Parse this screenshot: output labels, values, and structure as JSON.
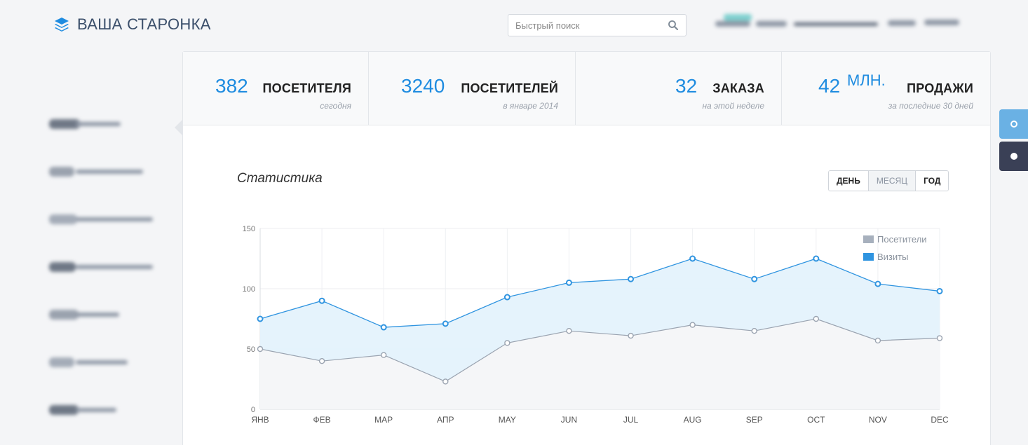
{
  "app": {
    "title": "ВАША СТАРОНКА",
    "search_placeholder": "Быстрый поиск"
  },
  "stats": [
    {
      "value": "382",
      "unit": "",
      "label": "ПОСЕТИТЕЛЯ",
      "sub": "сегодня"
    },
    {
      "value": "3240",
      "unit": "",
      "label": "ПОСЕТИТЕЛЕЙ",
      "sub": "в январе 2014"
    },
    {
      "value": "32",
      "unit": "",
      "label": "ЗАКАЗА",
      "sub": "на этой неделе"
    },
    {
      "value": "42",
      "unit": "МЛН.",
      "label": "ПРОДАЖИ",
      "sub": "за последние 30 дней"
    }
  ],
  "chart_panel": {
    "title": "Статистика",
    "periods": [
      "ДЕНЬ",
      "МЕСЯЦ",
      "ГОД"
    ],
    "active_period": "МЕСЯЦ"
  },
  "colors": {
    "accent": "#1f8ce0",
    "visits_fill": "#e4f2fc",
    "visitors_line": "#9aa3b0",
    "side_tab_blue": "#6ab1e4",
    "side_tab_dark": "#3a4056"
  },
  "chart_data": {
    "type": "area",
    "categories": [
      "ЯНВ",
      "ФЕВ",
      "МАР",
      "АПР",
      "MAY",
      "JUN",
      "JUL",
      "AUG",
      "SEP",
      "OCT",
      "NOV",
      "DEC"
    ],
    "series": [
      {
        "name": "Посетители",
        "color": "#9aa3b0",
        "values": [
          50,
          40,
          45,
          23,
          55,
          65,
          61,
          70,
          65,
          75,
          57,
          59
        ]
      },
      {
        "name": "Визиты",
        "color": "#2f94e0",
        "values": [
          75,
          90,
          68,
          71,
          93,
          105,
          108,
          125,
          108,
          125,
          104,
          98
        ]
      }
    ],
    "yticks": [
      0,
      50,
      100,
      150
    ],
    "ylim": [
      0,
      150
    ],
    "legend_position": "top-right",
    "grid": true
  }
}
